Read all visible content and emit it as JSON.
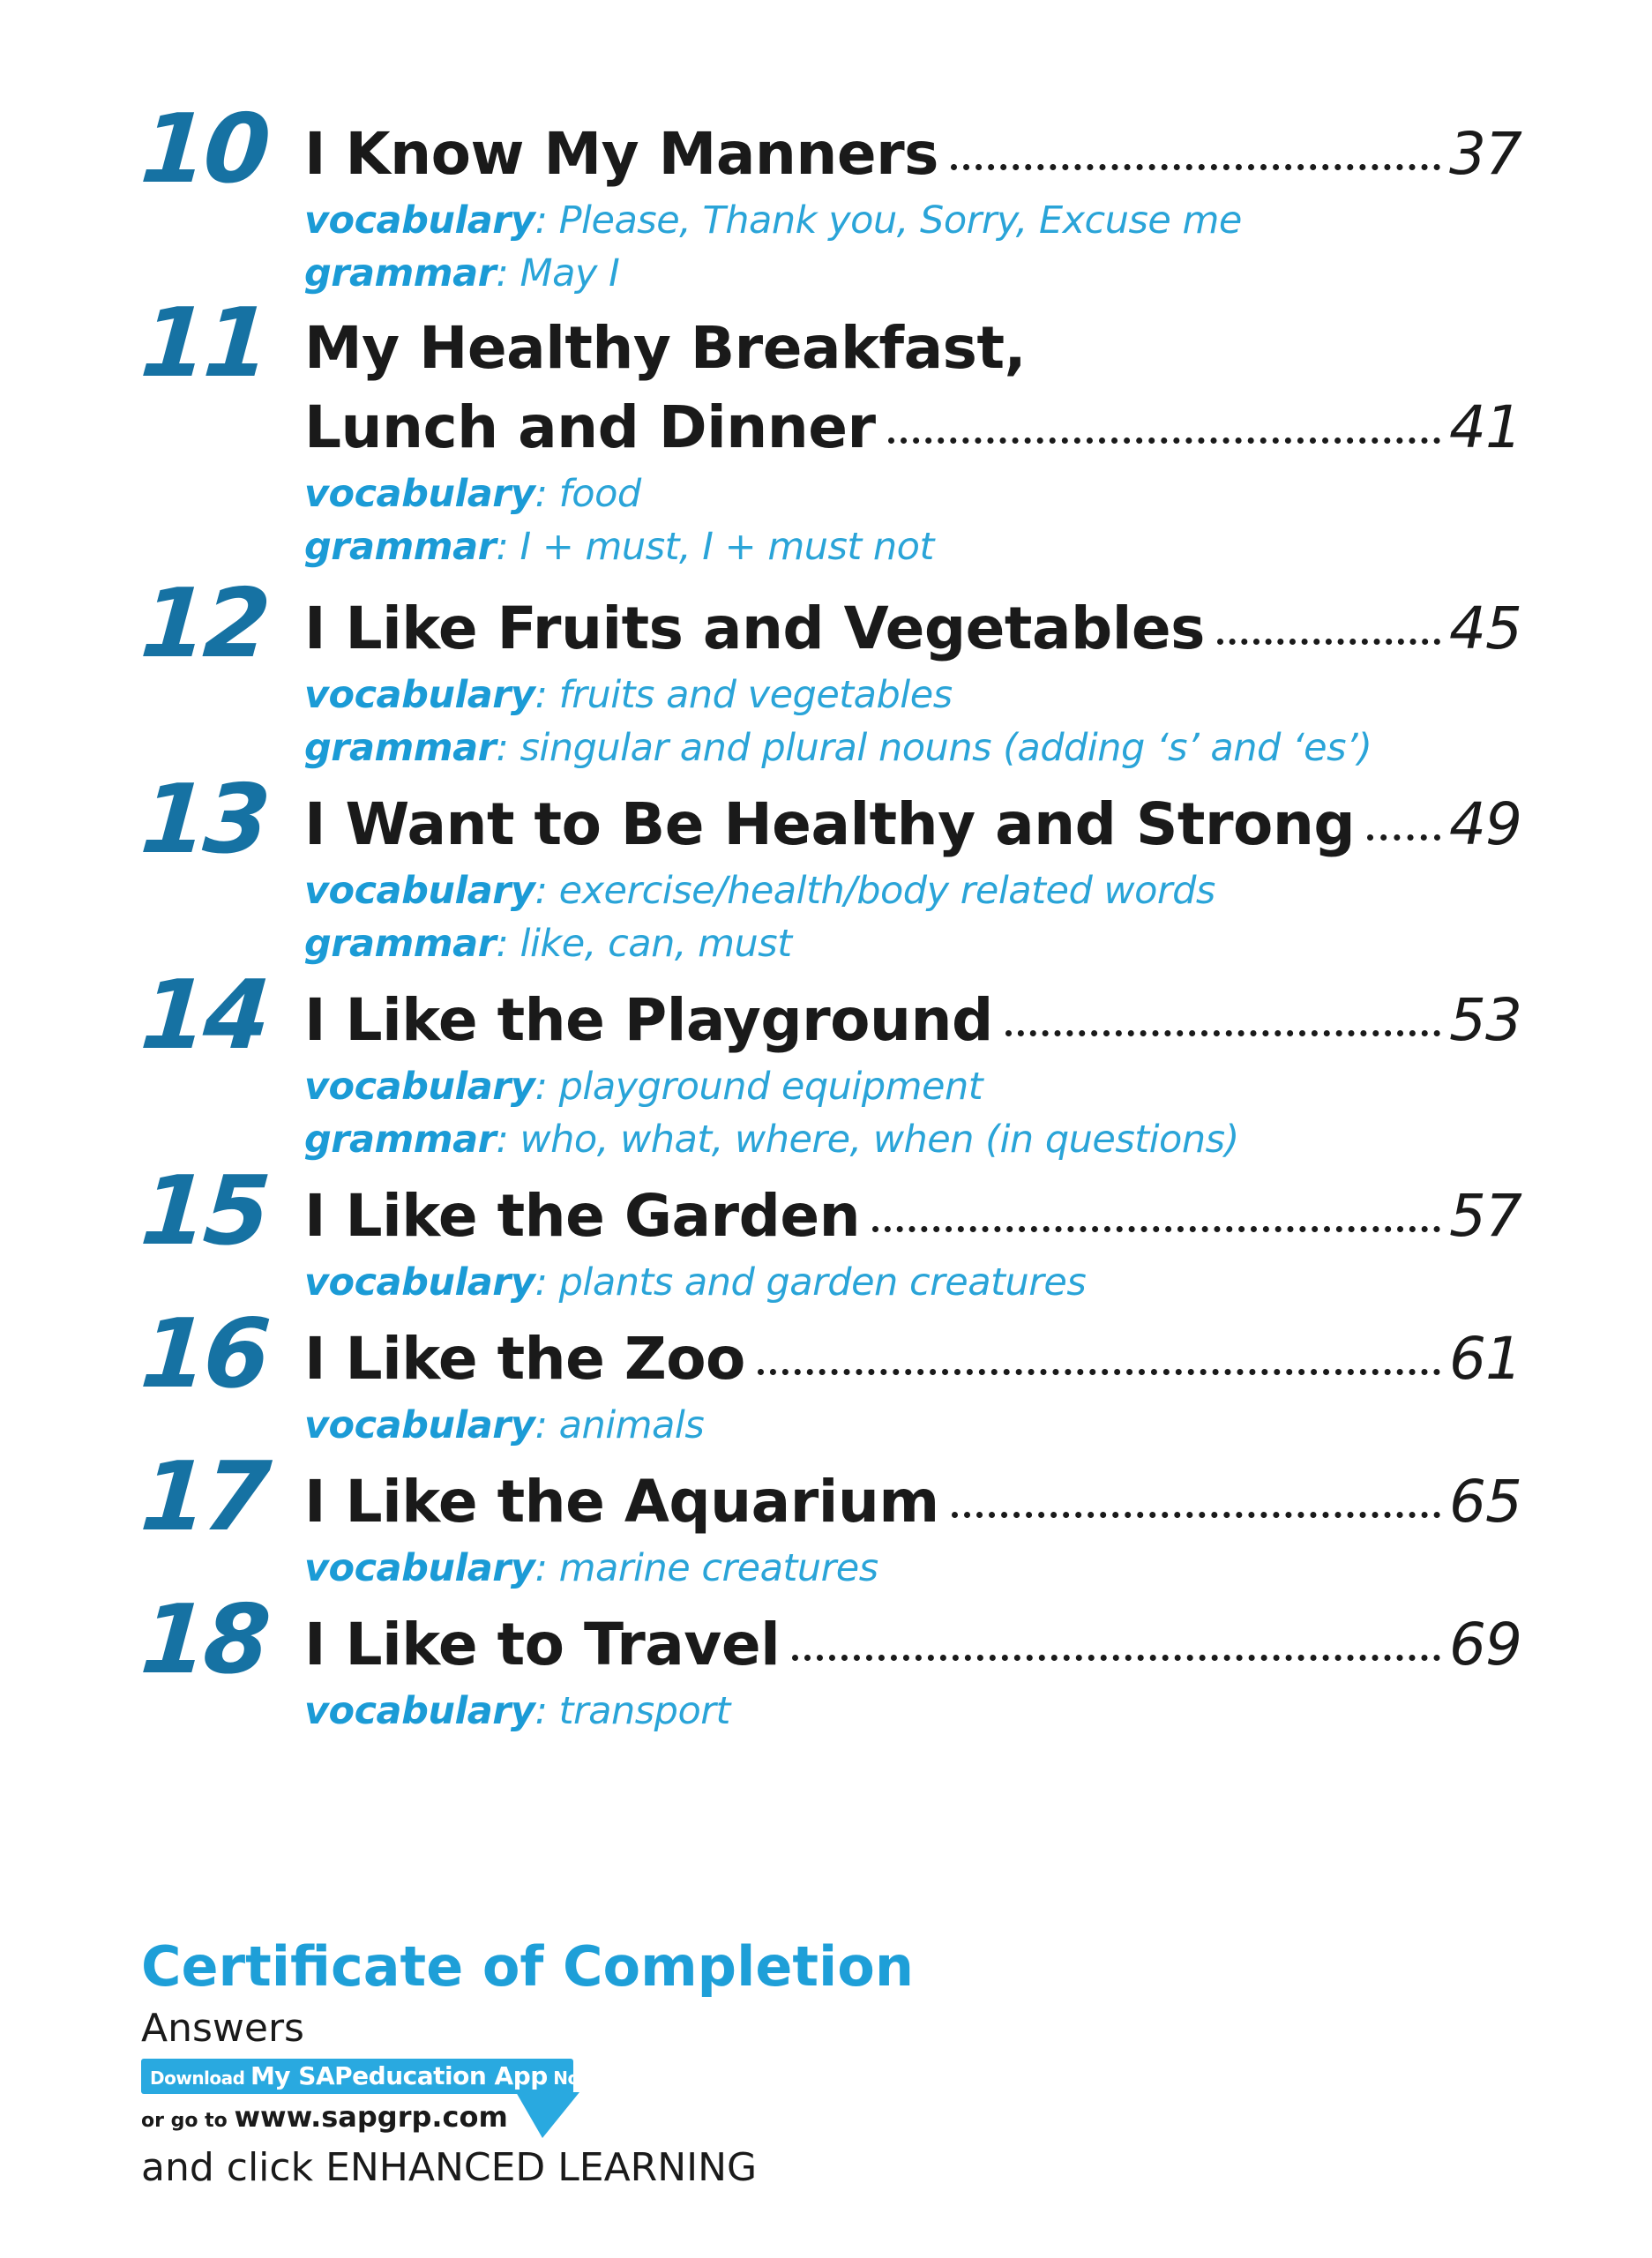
{
  "entries": [
    {
      "number": "10",
      "title_lines": [],
      "title": "I Know My Manners",
      "page": "37",
      "vocabulary_label": "vocabulary",
      "vocabulary": ": Please, Thank you, Sorry, Excuse me",
      "grammar_label": "grammar",
      "grammar": ": May I"
    },
    {
      "number": "11",
      "title_lines": [
        "My Healthy Breakfast,"
      ],
      "title": "Lunch and Dinner",
      "page": "41",
      "vocabulary_label": "vocabulary",
      "vocabulary": ": food",
      "grammar_label": "grammar",
      "grammar": ": I + must, I + must not"
    },
    {
      "number": "12",
      "title_lines": [],
      "title": "I Like Fruits and Vegetables",
      "page": "45",
      "vocabulary_label": "vocabulary",
      "vocabulary": ": fruits and vegetables",
      "grammar_label": "grammar",
      "grammar": ": singular and plural nouns (adding ‘s’ and ‘es’)"
    },
    {
      "number": "13",
      "title_lines": [],
      "title": "I Want to Be Healthy and Strong",
      "page": "49",
      "vocabulary_label": "vocabulary",
      "vocabulary": ": exercise/health/body related words",
      "grammar_label": "grammar",
      "grammar": ": like, can, must"
    },
    {
      "number": "14",
      "title_lines": [],
      "title": "I Like the Playground",
      "page": "53",
      "vocabulary_label": "vocabulary",
      "vocabulary": ": playground equipment",
      "grammar_label": "grammar",
      "grammar": ": who, what, where, when (in questions)"
    },
    {
      "number": "15",
      "title_lines": [],
      "title": "I Like the Garden",
      "page": "57",
      "vocabulary_label": "vocabulary",
      "vocabulary": ": plants and garden creatures",
      "grammar_label": "",
      "grammar": ""
    },
    {
      "number": "16",
      "title_lines": [],
      "title": "I Like the Zoo",
      "page": "61",
      "vocabulary_label": "vocabulary",
      "vocabulary": ": animals",
      "grammar_label": "",
      "grammar": ""
    },
    {
      "number": "17",
      "title_lines": [],
      "title": "I Like the Aquarium",
      "page": "65",
      "vocabulary_label": "vocabulary",
      "vocabulary": ": marine creatures",
      "grammar_label": "",
      "grammar": ""
    },
    {
      "number": "18",
      "title_lines": [],
      "title": "I Like to Travel",
      "page": "69",
      "vocabulary_label": "vocabulary",
      "vocabulary": ": transport",
      "grammar_label": "",
      "grammar": ""
    }
  ],
  "certificate": "Certificate of Completion",
  "answers": "Answers",
  "app_banner": {
    "download": "Download ",
    "app_name": "My SAPeducation App",
    "now": " Now!",
    "go_to": "or go to ",
    "url": "www.sapgrp.com"
  },
  "click_text": "and click ENHANCED LEARNING",
  "colors": {
    "number": "#1672a3",
    "subtext": "#2aa4d8",
    "certificate": "#1e9fd8",
    "banner": "#29a9e0",
    "title": "#1a1a1a"
  }
}
